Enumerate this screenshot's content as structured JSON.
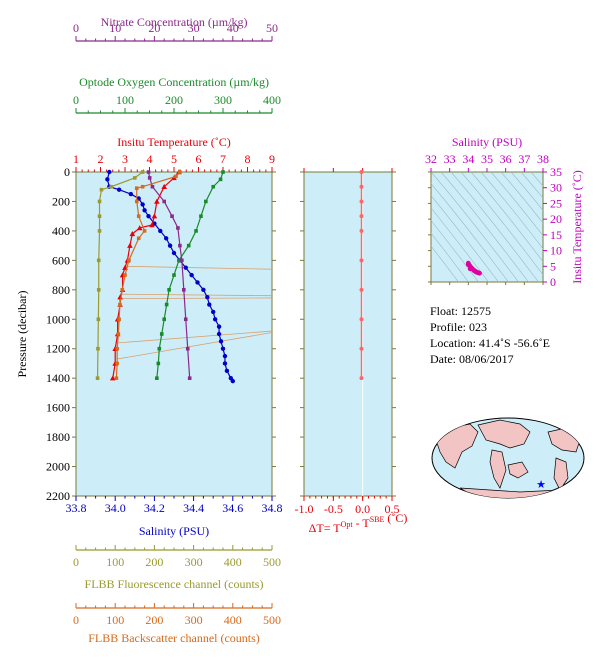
{
  "chart_data": {
    "type": "line",
    "main_panel": {
      "ylabel": "Pressure (decibar)",
      "ylim": [
        0,
        2200
      ],
      "y_ticks": [
        0,
        200,
        400,
        600,
        800,
        1000,
        1200,
        1400,
        1600,
        1800,
        2000,
        2200
      ],
      "axes": {
        "nitrate": {
          "label": "Nitrate Concentration (µm/kg)",
          "range": [
            0,
            50
          ],
          "ticks": [
            0,
            10,
            20,
            30,
            40,
            50
          ],
          "color": "#8b2a8b"
        },
        "oxygen": {
          "label": "Optode Oxygen Concentration (µm/kg)",
          "range": [
            0,
            400
          ],
          "ticks": [
            0,
            100,
            200,
            300,
            400
          ],
          "color": "#1a8a2a"
        },
        "temperature": {
          "label": "Insitu Temperature (˚C)",
          "range": [
            1,
            9
          ],
          "ticks": [
            1,
            2,
            3,
            4,
            5,
            6,
            7,
            8,
            9
          ],
          "color": "#e8000b"
        },
        "salinity": {
          "label": "Salinity (PSU)",
          "range": [
            33.8,
            34.8
          ],
          "ticks": [
            "33.8",
            "34.0",
            "34.2",
            "34.4",
            "34.6",
            "34.8"
          ],
          "color": "#0000c8"
        },
        "fluorescence": {
          "label": "FLBB Fluorescence channel (counts)",
          "range": [
            0,
            500
          ],
          "ticks": [
            0,
            100,
            200,
            300,
            400,
            500
          ],
          "color": "#9a9a30"
        },
        "backscatter": {
          "label": "FLBB Backscatter channel (counts)",
          "range": [
            0,
            500
          ],
          "ticks": [
            0,
            100,
            200,
            300,
            400,
            500
          ],
          "color": "#d86a1a"
        }
      },
      "series": [
        {
          "axis": "salinity",
          "color": "#0000c8",
          "points": [
            [
              33.97,
              0
            ],
            [
              33.96,
              50
            ],
            [
              33.97,
              100
            ],
            [
              34.02,
              120
            ],
            [
              34.08,
              150
            ],
            [
              34.12,
              180
            ],
            [
              34.14,
              220
            ],
            [
              34.15,
              260
            ],
            [
              34.17,
              300
            ],
            [
              34.2,
              350
            ],
            [
              34.23,
              400
            ],
            [
              34.26,
              450
            ],
            [
              34.28,
              500
            ],
            [
              34.3,
              550
            ],
            [
              34.33,
              600
            ],
            [
              34.36,
              650
            ],
            [
              34.39,
              700
            ],
            [
              34.42,
              750
            ],
            [
              34.45,
              800
            ],
            [
              34.47,
              850
            ],
            [
              34.48,
              900
            ],
            [
              34.5,
              950
            ],
            [
              34.51,
              1000
            ],
            [
              34.53,
              1050
            ],
            [
              34.53,
              1100
            ],
            [
              34.54,
              1150
            ],
            [
              34.55,
              1200
            ],
            [
              34.56,
              1250
            ],
            [
              34.56,
              1300
            ],
            [
              34.57,
              1350
            ],
            [
              34.59,
              1400
            ],
            [
              34.6,
              1420
            ]
          ]
        },
        {
          "axis": "temperature",
          "color": "#e8000b",
          "points": [
            [
              5.2,
              0
            ],
            [
              5.0,
              40
            ],
            [
              4.6,
              100
            ],
            [
              4.3,
              200
            ],
            [
              4.2,
              300
            ],
            [
              4.1,
              360
            ],
            [
              3.6,
              380
            ],
            [
              3.3,
              420
            ],
            [
              3.2,
              500
            ],
            [
              3.1,
              600
            ],
            [
              3.0,
              650
            ],
            [
              2.9,
              700
            ],
            [
              2.9,
              800
            ],
            [
              2.8,
              850
            ],
            [
              2.8,
              900
            ],
            [
              2.7,
              1000
            ],
            [
              2.7,
              1100
            ],
            [
              2.6,
              1200
            ],
            [
              2.6,
              1300
            ],
            [
              2.5,
              1400
            ]
          ]
        },
        {
          "axis": "oxygen",
          "color": "#1a8a2a",
          "points": [
            [
              300,
              0
            ],
            [
              295,
              50
            ],
            [
              280,
              100
            ],
            [
              265,
              200
            ],
            [
              255,
              300
            ],
            [
              245,
              400
            ],
            [
              230,
              500
            ],
            [
              210,
              600
            ],
            [
              200,
              700
            ],
            [
              190,
              800
            ],
            [
              185,
              900
            ],
            [
              180,
              1000
            ],
            [
              175,
              1100
            ],
            [
              170,
              1200
            ],
            [
              168,
              1300
            ],
            [
              165,
              1400
            ]
          ]
        },
        {
          "axis": "nitrate",
          "color": "#8b2a8b",
          "points": [
            [
              18.5,
              0
            ],
            [
              18.8,
              40
            ],
            [
              19.5,
              100
            ],
            [
              22.5,
              200
            ],
            [
              24.5,
              300
            ],
            [
              26,
              380
            ],
            [
              26.5,
              500
            ],
            [
              27,
              600
            ],
            [
              27.5,
              800
            ],
            [
              28,
              1000
            ],
            [
              28.5,
              1200
            ],
            [
              29,
              1400
            ]
          ]
        },
        {
          "axis": "fluorescence",
          "color": "#9a9a30",
          "points": [
            [
              170,
              0
            ],
            [
              150,
              40
            ],
            [
              90,
              100
            ],
            [
              65,
              120
            ],
            [
              60,
              200
            ],
            [
              60,
              300
            ],
            [
              60,
              400
            ],
            [
              58,
              600
            ],
            [
              58,
              800
            ],
            [
              57,
              1000
            ],
            [
              56,
              1200
            ],
            [
              55,
              1400
            ]
          ]
        },
        {
          "axis": "backscatter",
          "color": "#d86a1a",
          "points": [
            [
              265,
              0
            ],
            [
              255,
              30
            ],
            [
              170,
              100
            ],
            [
              155,
              110
            ],
            [
              155,
              200
            ],
            [
              160,
              300
            ],
            [
              175,
              400
            ],
            [
              160,
              450
            ],
            [
              135,
              600
            ],
            [
              125,
              700
            ],
            [
              118,
              800
            ],
            [
              112,
              900
            ],
            [
              110,
              1000
            ],
            [
              108,
              1100
            ],
            [
              105,
              1200
            ],
            [
              105,
              1300
            ],
            [
              103,
              1400
            ]
          ]
        }
      ],
      "spikes": [
        {
          "from": [
            125,
            640
          ],
          "to": [
            500,
            660
          ]
        },
        {
          "from": [
            118,
            830
          ],
          "to": [
            500,
            840
          ]
        },
        {
          "from": [
            112,
            860
          ],
          "to": [
            500,
            855
          ]
        },
        {
          "from": [
            108,
            1160
          ],
          "to": [
            500,
            1080
          ]
        },
        {
          "from": [
            105,
            1270
          ],
          "to": [
            500,
            1090
          ]
        }
      ]
    },
    "delta_panel": {
      "xlabel": "ΔT= T^Opt - T^SBE (˚C)",
      "xlim": [
        -1.0,
        0.5
      ],
      "x_ticks": [
        "-1.0",
        "-0.5",
        "0.0",
        "0.5"
      ],
      "color": "#ff6666",
      "points": [
        [
          -0.02,
          0
        ],
        [
          -0.02,
          100
        ],
        [
          -0.02,
          200
        ],
        [
          -0.02,
          300
        ],
        [
          -0.02,
          400
        ],
        [
          -0.02,
          600
        ],
        [
          -0.02,
          800
        ],
        [
          -0.02,
          1000
        ],
        [
          -0.02,
          1200
        ],
        [
          -0.02,
          1400
        ]
      ]
    },
    "ts_panel": {
      "title": "Salinity (PSU)",
      "ylabel": "Insitu Temperature (˚C)",
      "xlim": [
        32,
        38
      ],
      "ylim": [
        0,
        35
      ],
      "x_ticks": [
        "32",
        "33",
        "34",
        "35",
        "36",
        "37",
        "38"
      ],
      "y_ticks": [
        "0",
        "5",
        "10",
        "15",
        "20",
        "25",
        "30",
        "35"
      ],
      "color": "#e000a0",
      "points": [
        [
          34.0,
          6.0
        ],
        [
          34.05,
          5.4
        ],
        [
          34.1,
          5.0
        ],
        [
          34.15,
          4.6
        ],
        [
          34.2,
          4.3
        ],
        [
          34.25,
          4.0
        ],
        [
          34.3,
          3.7
        ],
        [
          34.35,
          3.5
        ],
        [
          34.4,
          3.3
        ],
        [
          34.45,
          3.1
        ],
        [
          34.5,
          3.0
        ],
        [
          34.55,
          2.9
        ],
        [
          34.6,
          2.8
        ],
        [
          34.0,
          5.5
        ],
        [
          34.1,
          4.2
        ]
      ]
    }
  },
  "float_info": {
    "float": "Float:  12575",
    "profile": "Profile:  023",
    "location": "Location:  41.4˚S  -56.6˚E",
    "date": "Date:  08/06/2017"
  }
}
